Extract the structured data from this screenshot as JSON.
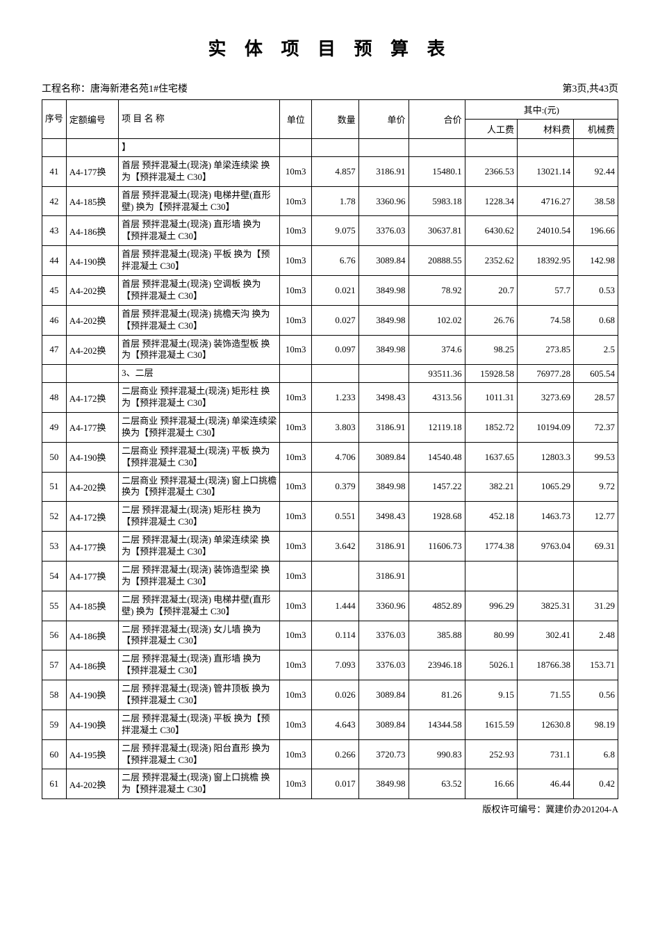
{
  "title": "实 体 项 目 预 算 表",
  "project_label": "工程名称：",
  "project_name": "唐海新港名苑1#住宅楼",
  "page_info": "第3页,共43页",
  "footer": "版权许可编号：冀建价办201204-A",
  "columns": {
    "seq": "序号",
    "code": "定额编号",
    "name": "项 目 名 称",
    "unit": "单位",
    "qty": "数量",
    "price": "单价",
    "total": "合价",
    "breakdown": "其中:(元)",
    "labor": "人工费",
    "material": "材料费",
    "machine": "机械费"
  },
  "rows": [
    {
      "seq": "",
      "code": "",
      "name": "】",
      "unit": "",
      "qty": "",
      "price": "",
      "total": "",
      "labor": "",
      "material": "",
      "machine": ""
    },
    {
      "seq": "41",
      "code": "A4-177换",
      "name": "首层 预拌混凝土(现浇) 单梁连续梁 换为【预拌混凝土 C30】",
      "unit": "10m3",
      "qty": "4.857",
      "price": "3186.91",
      "total": "15480.1",
      "labor": "2366.53",
      "material": "13021.14",
      "machine": "92.44"
    },
    {
      "seq": "42",
      "code": "A4-185换",
      "name": "首层 预拌混凝土(现浇) 电梯井壁(直形壁) 换为【预拌混凝土 C30】",
      "unit": "10m3",
      "qty": "1.78",
      "price": "3360.96",
      "total": "5983.18",
      "labor": "1228.34",
      "material": "4716.27",
      "machine": "38.58"
    },
    {
      "seq": "43",
      "code": "A4-186换",
      "name": "首层 预拌混凝土(现浇) 直形墙 换为【预拌混凝土 C30】",
      "unit": "10m3",
      "qty": "9.075",
      "price": "3376.03",
      "total": "30637.81",
      "labor": "6430.62",
      "material": "24010.54",
      "machine": "196.66"
    },
    {
      "seq": "44",
      "code": "A4-190换",
      "name": "首层 预拌混凝土(现浇) 平板 换为【预拌混凝土 C30】",
      "unit": "10m3",
      "qty": "6.76",
      "price": "3089.84",
      "total": "20888.55",
      "labor": "2352.62",
      "material": "18392.95",
      "machine": "142.98"
    },
    {
      "seq": "45",
      "code": "A4-202换",
      "name": "首层 预拌混凝土(现浇) 空调板 换为【预拌混凝土 C30】",
      "unit": "10m3",
      "qty": "0.021",
      "price": "3849.98",
      "total": "78.92",
      "labor": "20.7",
      "material": "57.7",
      "machine": "0.53"
    },
    {
      "seq": "46",
      "code": "A4-202换",
      "name": "首层 预拌混凝土(现浇) 挑檐天沟 换为【预拌混凝土 C30】",
      "unit": "10m3",
      "qty": "0.027",
      "price": "3849.98",
      "total": "102.02",
      "labor": "26.76",
      "material": "74.58",
      "machine": "0.68"
    },
    {
      "seq": "47",
      "code": "A4-202换",
      "name": "首层 预拌混凝土(现浇) 装饰造型板 换为【预拌混凝土 C30】",
      "unit": "10m3",
      "qty": "0.097",
      "price": "3849.98",
      "total": "374.6",
      "labor": "98.25",
      "material": "273.85",
      "machine": "2.5"
    },
    {
      "seq": "",
      "code": "",
      "name": "3、二层",
      "unit": "",
      "qty": "",
      "price": "",
      "total": "93511.36",
      "labor": "15928.58",
      "material": "76977.28",
      "machine": "605.54"
    },
    {
      "seq": "48",
      "code": "A4-172换",
      "name": "二层商业 预拌混凝土(现浇) 矩形柱 换为【预拌混凝土 C30】",
      "unit": "10m3",
      "qty": "1.233",
      "price": "3498.43",
      "total": "4313.56",
      "labor": "1011.31",
      "material": "3273.69",
      "machine": "28.57"
    },
    {
      "seq": "49",
      "code": "A4-177换",
      "name": "二层商业 预拌混凝土(现浇) 单梁连续梁 换为【预拌混凝土 C30】",
      "unit": "10m3",
      "qty": "3.803",
      "price": "3186.91",
      "total": "12119.18",
      "labor": "1852.72",
      "material": "10194.09",
      "machine": "72.37"
    },
    {
      "seq": "50",
      "code": "A4-190换",
      "name": "二层商业 预拌混凝土(现浇) 平板 换为【预拌混凝土 C30】",
      "unit": "10m3",
      "qty": "4.706",
      "price": "3089.84",
      "total": "14540.48",
      "labor": "1637.65",
      "material": "12803.3",
      "machine": "99.53"
    },
    {
      "seq": "51",
      "code": "A4-202换",
      "name": "二层商业 预拌混凝土(现浇) 窗上口挑檐 换为【预拌混凝土 C30】",
      "unit": "10m3",
      "qty": "0.379",
      "price": "3849.98",
      "total": "1457.22",
      "labor": "382.21",
      "material": "1065.29",
      "machine": "9.72"
    },
    {
      "seq": "52",
      "code": "A4-172换",
      "name": "二层 预拌混凝土(现浇) 矩形柱 换为【预拌混凝土 C30】",
      "unit": "10m3",
      "qty": "0.551",
      "price": "3498.43",
      "total": "1928.68",
      "labor": "452.18",
      "material": "1463.73",
      "machine": "12.77"
    },
    {
      "seq": "53",
      "code": "A4-177换",
      "name": "二层 预拌混凝土(现浇) 单梁连续梁 换为【预拌混凝土 C30】",
      "unit": "10m3",
      "qty": "3.642",
      "price": "3186.91",
      "total": "11606.73",
      "labor": "1774.38",
      "material": "9763.04",
      "machine": "69.31"
    },
    {
      "seq": "54",
      "code": "A4-177换",
      "name": "二层 预拌混凝土(现浇) 装饰造型梁 换为【预拌混凝土 C30】",
      "unit": "10m3",
      "qty": "",
      "price": "3186.91",
      "total": "",
      "labor": "",
      "material": "",
      "machine": ""
    },
    {
      "seq": "55",
      "code": "A4-185换",
      "name": "二层 预拌混凝土(现浇) 电梯井壁(直形壁) 换为【预拌混凝土 C30】",
      "unit": "10m3",
      "qty": "1.444",
      "price": "3360.96",
      "total": "4852.89",
      "labor": "996.29",
      "material": "3825.31",
      "machine": "31.29"
    },
    {
      "seq": "56",
      "code": "A4-186换",
      "name": "二层 预拌混凝土(现浇) 女儿墙 换为【预拌混凝土 C30】",
      "unit": "10m3",
      "qty": "0.114",
      "price": "3376.03",
      "total": "385.88",
      "labor": "80.99",
      "material": "302.41",
      "machine": "2.48"
    },
    {
      "seq": "57",
      "code": "A4-186换",
      "name": "二层 预拌混凝土(现浇) 直形墙 换为【预拌混凝土 C30】",
      "unit": "10m3",
      "qty": "7.093",
      "price": "3376.03",
      "total": "23946.18",
      "labor": "5026.1",
      "material": "18766.38",
      "machine": "153.71"
    },
    {
      "seq": "58",
      "code": "A4-190换",
      "name": "二层 预拌混凝土(现浇) 管井顶板 换为【预拌混凝土 C30】",
      "unit": "10m3",
      "qty": "0.026",
      "price": "3089.84",
      "total": "81.26",
      "labor": "9.15",
      "material": "71.55",
      "machine": "0.56"
    },
    {
      "seq": "59",
      "code": "A4-190换",
      "name": "二层 预拌混凝土(现浇) 平板 换为【预拌混凝土 C30】",
      "unit": "10m3",
      "qty": "4.643",
      "price": "3089.84",
      "total": "14344.58",
      "labor": "1615.59",
      "material": "12630.8",
      "machine": "98.19"
    },
    {
      "seq": "60",
      "code": "A4-195换",
      "name": "二层 预拌混凝土(现浇) 阳台直形 换为【预拌混凝土 C30】",
      "unit": "10m3",
      "qty": "0.266",
      "price": "3720.73",
      "total": "990.83",
      "labor": "252.93",
      "material": "731.1",
      "machine": "6.8"
    },
    {
      "seq": "61",
      "code": "A4-202换",
      "name": "二层 预拌混凝土(现浇) 窗上口挑檐 换为【预拌混凝土 C30】",
      "unit": "10m3",
      "qty": "0.017",
      "price": "3849.98",
      "total": "63.52",
      "labor": "16.66",
      "material": "46.44",
      "machine": "0.42"
    }
  ]
}
